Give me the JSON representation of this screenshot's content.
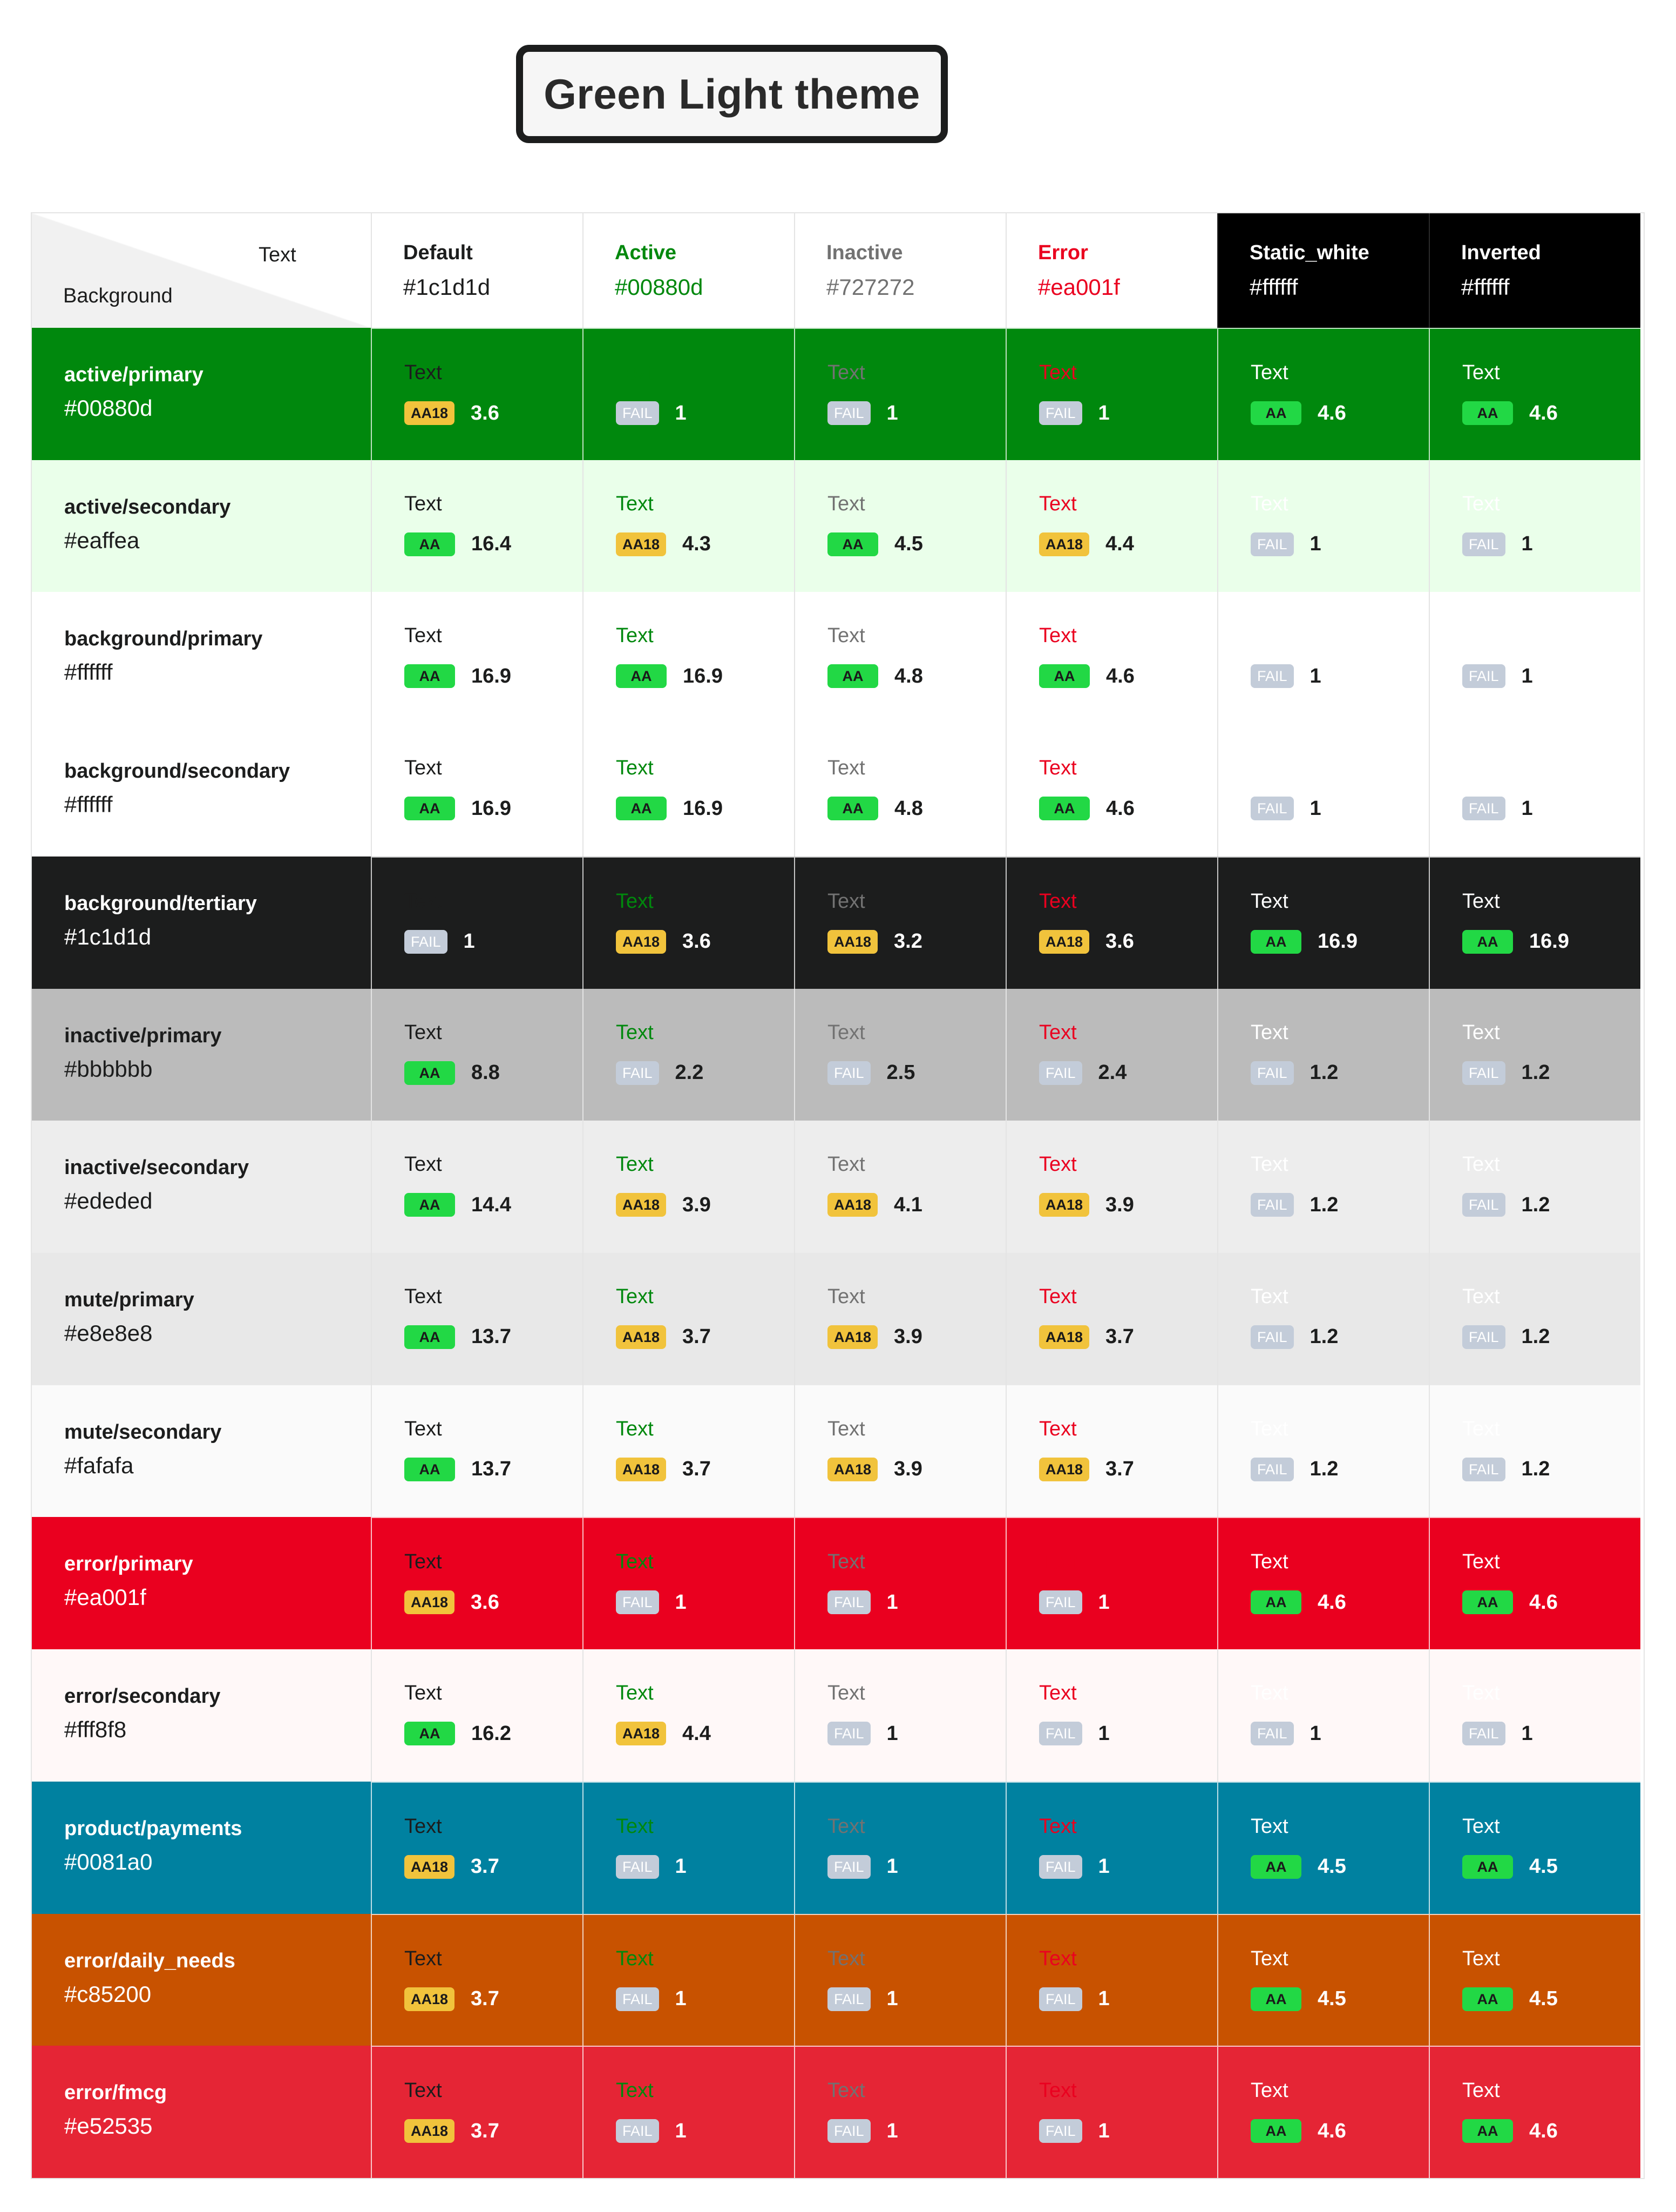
{
  "title": "Green Light theme",
  "corner": {
    "text_label": "Text",
    "background_label": "Background"
  },
  "text_styles": [
    {
      "name": "Default",
      "hex": "#1c1d1d",
      "color": "#1c1d1d"
    },
    {
      "name": "Active",
      "hex": "#00880d",
      "color": "#00880d"
    },
    {
      "name": "Inactive",
      "hex": "#727272",
      "color": "#727272"
    },
    {
      "name": "Error",
      "hex": "#ea001f",
      "color": "#ea001f"
    },
    {
      "name": "Static_white",
      "hex": "#ffffff",
      "color": "#ffffff",
      "header_bg": "#000000"
    },
    {
      "name": "Inverted",
      "hex": "#ffffff",
      "color": "#ffffff",
      "header_bg": "#000000"
    }
  ],
  "sample_text": "Text",
  "rows": [
    {
      "name": "active/primary",
      "hex": "#00880d",
      "bg": "#00880d",
      "label_color": "#ffffff",
      "light": false,
      "cells": [
        [
          "AA18",
          "3.6"
        ],
        [
          "FAIL",
          "1"
        ],
        [
          "FAIL",
          "1"
        ],
        [
          "FAIL",
          "1"
        ],
        [
          "AA",
          "4.6"
        ],
        [
          "AA",
          "4.6"
        ]
      ]
    },
    {
      "name": "active/secondary",
      "hex": "#eaffea",
      "bg": "#eaffea",
      "label_color": "#1c1d1d",
      "light": true,
      "cells": [
        [
          "AA",
          "16.4"
        ],
        [
          "AA18",
          "4.3"
        ],
        [
          "AA",
          "4.5"
        ],
        [
          "AA18",
          "4.4"
        ],
        [
          "FAIL",
          "1"
        ],
        [
          "FAIL",
          "1"
        ]
      ]
    },
    {
      "name": "background/primary",
      "hex": "#ffffff",
      "bg": "#ffffff",
      "label_color": "#1c1d1d",
      "light": true,
      "cells": [
        [
          "AA",
          "16.9"
        ],
        [
          "AA",
          "16.9"
        ],
        [
          "AA",
          "4.8"
        ],
        [
          "AA",
          "4.6"
        ],
        [
          "FAIL",
          "1"
        ],
        [
          "FAIL",
          "1"
        ]
      ]
    },
    {
      "name": "background/secondary",
      "hex": "#ffffff",
      "bg": "#ffffff",
      "label_color": "#1c1d1d",
      "light": true,
      "cells": [
        [
          "AA",
          "16.9"
        ],
        [
          "AA",
          "16.9"
        ],
        [
          "AA",
          "4.8"
        ],
        [
          "AA",
          "4.6"
        ],
        [
          "FAIL",
          "1"
        ],
        [
          "FAIL",
          "1"
        ]
      ]
    },
    {
      "name": "background/tertiary",
      "hex": "#1c1d1d",
      "bg": "#1c1d1d",
      "label_color": "#ffffff",
      "light": false,
      "cells": [
        [
          "FAIL",
          "1"
        ],
        [
          "AA18",
          "3.6"
        ],
        [
          "AA18",
          "3.2"
        ],
        [
          "AA18",
          "3.6"
        ],
        [
          "AA",
          "16.9"
        ],
        [
          "AA",
          "16.9"
        ]
      ]
    },
    {
      "name": "inactive/primary",
      "hex": "#bbbbbb",
      "bg": "#bbbbbb",
      "label_color": "#1c1d1d",
      "light": true,
      "cells": [
        [
          "AA",
          "8.8"
        ],
        [
          "FAIL",
          "2.2"
        ],
        [
          "FAIL",
          "2.5"
        ],
        [
          "FAIL",
          "2.4"
        ],
        [
          "FAIL",
          "1.2"
        ],
        [
          "FAIL",
          "1.2"
        ]
      ]
    },
    {
      "name": "inactive/secondary",
      "hex": "#ededed",
      "bg": "#ededed",
      "label_color": "#1c1d1d",
      "light": true,
      "cells": [
        [
          "AA",
          "14.4"
        ],
        [
          "AA18",
          "3.9"
        ],
        [
          "AA18",
          "4.1"
        ],
        [
          "AA18",
          "3.9"
        ],
        [
          "FAIL",
          "1.2"
        ],
        [
          "FAIL",
          "1.2"
        ]
      ]
    },
    {
      "name": "mute/primary",
      "hex": "#e8e8e8",
      "bg": "#e8e8e8",
      "label_color": "#1c1d1d",
      "light": true,
      "cells": [
        [
          "AA",
          "13.7"
        ],
        [
          "AA18",
          "3.7"
        ],
        [
          "AA18",
          "3.9"
        ],
        [
          "AA18",
          "3.7"
        ],
        [
          "FAIL",
          "1.2"
        ],
        [
          "FAIL",
          "1.2"
        ]
      ]
    },
    {
      "name": "mute/secondary",
      "hex": "#fafafa",
      "bg": "#fafafa",
      "label_color": "#1c1d1d",
      "light": true,
      "cells": [
        [
          "AA",
          "13.7"
        ],
        [
          "AA18",
          "3.7"
        ],
        [
          "AA18",
          "3.9"
        ],
        [
          "AA18",
          "3.7"
        ],
        [
          "FAIL",
          "1.2"
        ],
        [
          "FAIL",
          "1.2"
        ]
      ]
    },
    {
      "name": "error/primary",
      "hex": "#ea001f",
      "bg": "#ea001f",
      "label_color": "#ffffff",
      "light": false,
      "cells": [
        [
          "AA18",
          "3.6"
        ],
        [
          "FAIL",
          "1"
        ],
        [
          "FAIL",
          "1"
        ],
        [
          "FAIL",
          "1"
        ],
        [
          "AA",
          "4.6"
        ],
        [
          "AA",
          "4.6"
        ]
      ]
    },
    {
      "name": "error/secondary",
      "hex": "#fff8f8",
      "bg": "#fff8f8",
      "label_color": "#1c1d1d",
      "light": true,
      "cells": [
        [
          "AA",
          "16.2"
        ],
        [
          "AA18",
          "4.4"
        ],
        [
          "FAIL",
          "1"
        ],
        [
          "FAIL",
          "1"
        ],
        [
          "FAIL",
          "1"
        ],
        [
          "FAIL",
          "1"
        ]
      ]
    },
    {
      "name": "product/payments",
      "hex": "#0081a0",
      "bg": "#0081a0",
      "label_color": "#ffffff",
      "light": false,
      "cells": [
        [
          "AA18",
          "3.7"
        ],
        [
          "FAIL",
          "1"
        ],
        [
          "FAIL",
          "1"
        ],
        [
          "FAIL",
          "1"
        ],
        [
          "AA",
          "4.5"
        ],
        [
          "AA",
          "4.5"
        ]
      ]
    },
    {
      "name": "error/daily_needs",
      "hex": "#c85200",
      "bg": "#c85200",
      "label_color": "#ffffff",
      "light": false,
      "cells": [
        [
          "AA18",
          "3.7"
        ],
        [
          "FAIL",
          "1"
        ],
        [
          "FAIL",
          "1"
        ],
        [
          "FAIL",
          "1"
        ],
        [
          "AA",
          "4.5"
        ],
        [
          "AA",
          "4.5"
        ]
      ]
    },
    {
      "name": "error/fmcg",
      "hex": "#e52535",
      "bg": "#e52535",
      "label_color": "#ffffff",
      "light": false,
      "cells": [
        [
          "AA18",
          "3.7"
        ],
        [
          "FAIL",
          "1"
        ],
        [
          "FAIL",
          "1"
        ],
        [
          "FAIL",
          "1"
        ],
        [
          "AA",
          "4.6"
        ],
        [
          "AA",
          "4.6"
        ]
      ]
    }
  ]
}
